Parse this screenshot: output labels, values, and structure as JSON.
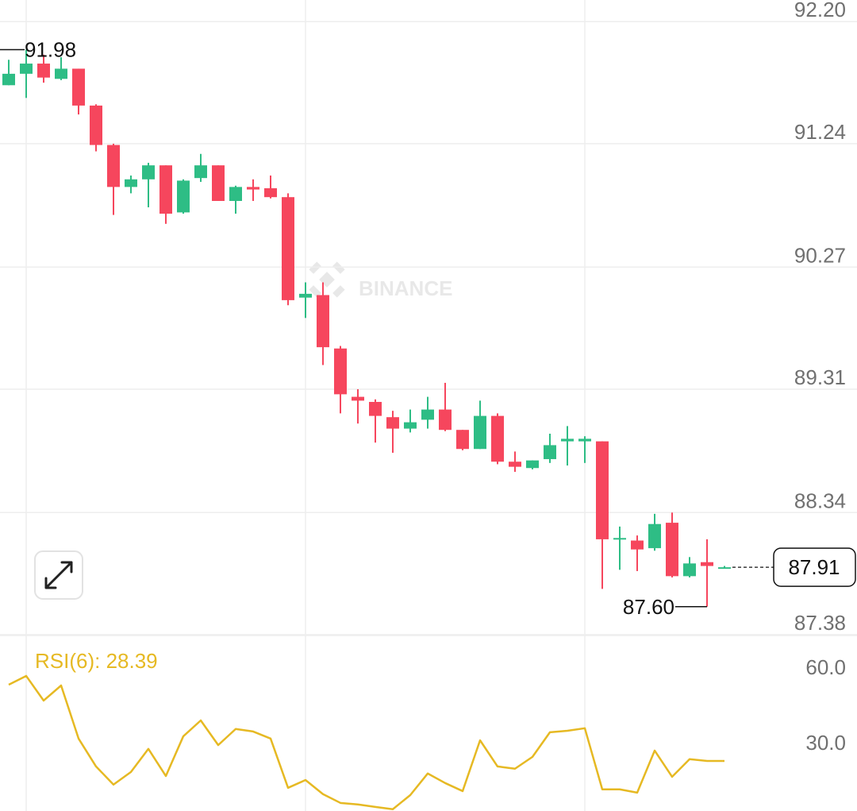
{
  "chart_data": [
    {
      "type": "candlestick",
      "watermark": "BINANCE",
      "up_color": "#2ebd85",
      "down_color": "#f6465d",
      "open": [
        91.7,
        91.79,
        91.87,
        91.75,
        91.83,
        91.54,
        91.23,
        90.9,
        90.96,
        91.07,
        90.7,
        90.97,
        91.07,
        90.79,
        90.9,
        90.89,
        90.82,
        90.03,
        90.05,
        89.63,
        89.25,
        89.21,
        89.09,
        89.0,
        89.07,
        89.15,
        88.99,
        88.84,
        89.1,
        88.74,
        88.69,
        88.76,
        88.9,
        88.9,
        88.9,
        88.13,
        88.12,
        88.06,
        88.26,
        87.84,
        87.95,
        87.9
      ],
      "high": [
        91.9,
        91.98,
        91.94,
        91.92,
        91.83,
        91.55,
        91.24,
        90.99,
        91.09,
        91.07,
        90.96,
        91.16,
        91.07,
        90.91,
        90.96,
        90.99,
        90.85,
        90.15,
        90.15,
        89.65,
        89.31,
        89.23,
        89.14,
        89.15,
        89.25,
        89.36,
        88.99,
        89.22,
        89.12,
        88.82,
        88.75,
        88.96,
        89.02,
        88.94,
        88.9,
        88.23,
        88.16,
        88.33,
        88.34,
        87.99,
        88.13,
        87.92
      ],
      "low": [
        91.7,
        91.6,
        91.72,
        91.74,
        91.47,
        91.18,
        90.68,
        90.85,
        90.74,
        90.61,
        90.69,
        90.94,
        90.79,
        90.69,
        90.79,
        90.81,
        89.97,
        89.87,
        89.5,
        89.12,
        89.04,
        88.89,
        88.81,
        88.97,
        89.0,
        88.98,
        88.83,
        88.84,
        88.72,
        88.66,
        88.68,
        88.73,
        88.71,
        88.73,
        87.74,
        87.89,
        87.88,
        88.04,
        87.83,
        87.83,
        87.6,
        87.9
      ],
      "close": [
        91.79,
        91.87,
        91.76,
        91.83,
        91.54,
        91.23,
        90.9,
        90.96,
        91.07,
        90.69,
        90.95,
        91.07,
        90.79,
        90.9,
        90.88,
        90.82,
        90.01,
        90.06,
        89.64,
        89.27,
        89.22,
        89.1,
        89.0,
        89.05,
        89.15,
        88.99,
        88.84,
        89.1,
        88.74,
        88.7,
        88.75,
        88.87,
        88.92,
        88.92,
        88.13,
        88.14,
        88.05,
        88.25,
        87.84,
        87.94,
        87.92,
        87.91
      ],
      "ylim": [
        87.38,
        92.37
      ],
      "yticks": [
        {
          "value": 92.2,
          "label": "92.20"
        },
        91.24,
        90.27,
        89.31,
        88.34,
        87.38
      ],
      "grid": true,
      "annotations": {
        "high": {
          "value": 91.98,
          "label": "91.98"
        },
        "low": {
          "value": 87.6,
          "label": "87.60"
        },
        "last": {
          "value": 87.91,
          "label": "87.91"
        }
      }
    },
    {
      "type": "line",
      "title": "RSI(6): 28.39",
      "color": "#e6b923",
      "values": [
        58.7,
        62.2,
        52.4,
        58.4,
        37.3,
        26.2,
        19.0,
        24.0,
        33.2,
        22.4,
        38.2,
        44.5,
        34.7,
        41.1,
        40.1,
        37.3,
        17.7,
        20.8,
        15.2,
        11.7,
        11.1,
        10.1,
        9.2,
        14.8,
        23.4,
        19.6,
        16.4,
        36.6,
        26.2,
        25.3,
        30.0,
        39.8,
        40.4,
        41.4,
        17.1,
        17.1,
        15.8,
        32.5,
        22.1,
        29.1,
        28.4,
        28.39
      ],
      "ylim": [
        8.8,
        78.3
      ],
      "yticks": [
        {
          "value": 60,
          "label": "60.0"
        },
        {
          "value": 30,
          "label": "30.0"
        }
      ]
    }
  ]
}
